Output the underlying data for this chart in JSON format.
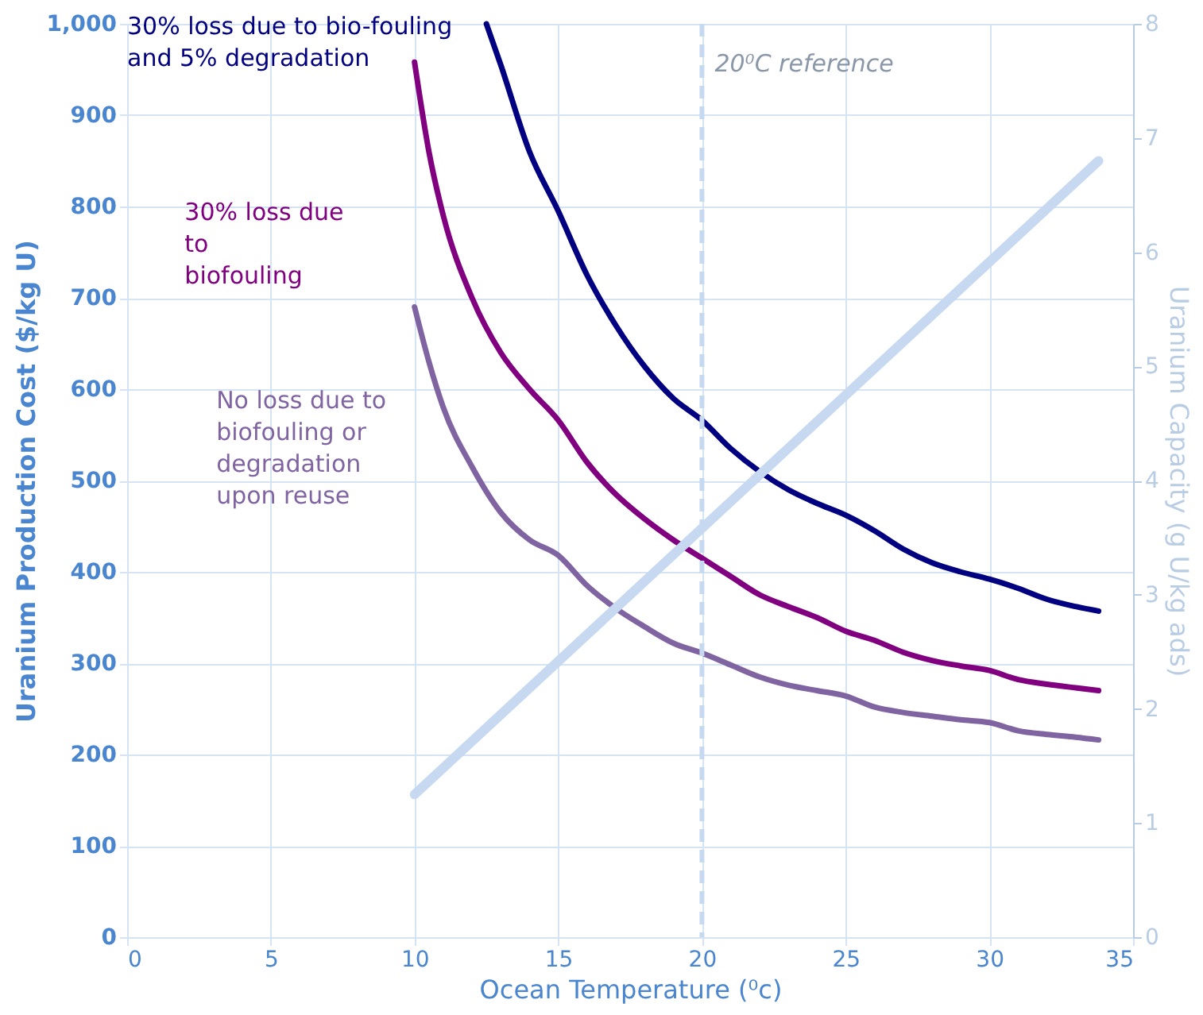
{
  "chart_data": {
    "type": "line",
    "xlabel": "Ocean Temperature (⁰c)",
    "ylabel": "Uranium Production Cost ($/kg U)",
    "y2label": "Uranium Capacity (g U/kg ads)",
    "xlim": [
      0,
      35
    ],
    "xticks": [
      0,
      5,
      10,
      15,
      20,
      25,
      30,
      35
    ],
    "ylim": [
      0,
      1000
    ],
    "yticks": [
      0,
      100,
      200,
      300,
      400,
      500,
      600,
      700,
      800,
      900,
      {
        "value": 1000,
        "label": "1,000"
      }
    ],
    "y2lim": [
      0,
      8
    ],
    "y2ticks": [
      0,
      1,
      2,
      3,
      4,
      5,
      6,
      7,
      8
    ],
    "grid": true,
    "marker": "none",
    "line_style": "solid",
    "ref_lines": [
      {
        "axis": "x",
        "value": 20,
        "label": "20⁰C reference",
        "color": "#c6d9f0",
        "line_style": "dashed"
      }
    ],
    "series": [
      {
        "name": "30% loss due to bio-fouling and 5% degradation",
        "color": "#000080",
        "x": [
          12.5,
          13,
          14,
          15,
          16,
          17,
          18,
          19,
          20,
          21,
          22,
          23,
          24,
          25,
          26,
          27,
          28,
          29,
          30,
          31,
          32,
          33,
          33.8
        ],
        "values": [
          1000,
          955,
          860,
          795,
          725,
          670,
          625,
          590,
          566,
          535,
          510,
          490,
          475,
          462,
          445,
          425,
          410,
          400,
          392,
          382,
          370,
          362,
          357
        ]
      },
      {
        "name": "30% loss due to biofouling",
        "color": "#800080",
        "x": [
          10,
          10.5,
          11,
          12,
          13,
          14,
          15,
          16,
          17,
          18,
          19,
          20,
          21,
          22,
          23,
          24,
          25,
          26,
          27,
          28,
          29,
          30,
          31,
          32,
          33,
          33.8
        ],
        "values": [
          958,
          860,
          790,
          700,
          640,
          600,
          566,
          520,
          485,
          458,
          435,
          415,
          395,
          375,
          362,
          350,
          335,
          325,
          312,
          303,
          297,
          292,
          282,
          277,
          273,
          270
        ]
      },
      {
        "name": "No loss due to biofouling or degradation upon reuse",
        "color": "#8064a2",
        "x": [
          10,
          10.5,
          11,
          12,
          13,
          14,
          15,
          16,
          17,
          18,
          19,
          20,
          21,
          22,
          23,
          24,
          25,
          26,
          27,
          28,
          29,
          30,
          31,
          32,
          33,
          33.8
        ],
        "values": [
          690,
          630,
          580,
          515,
          465,
          435,
          418,
          385,
          360,
          340,
          322,
          311,
          298,
          285,
          276,
          270,
          264,
          252,
          246,
          242,
          238,
          235,
          226,
          222,
          219,
          216
        ]
      },
      {
        "color": "#c6d9f0",
        "axis": "y2",
        "x": [
          10,
          33.8
        ],
        "values": [
          1.25,
          6.8
        ]
      }
    ]
  }
}
